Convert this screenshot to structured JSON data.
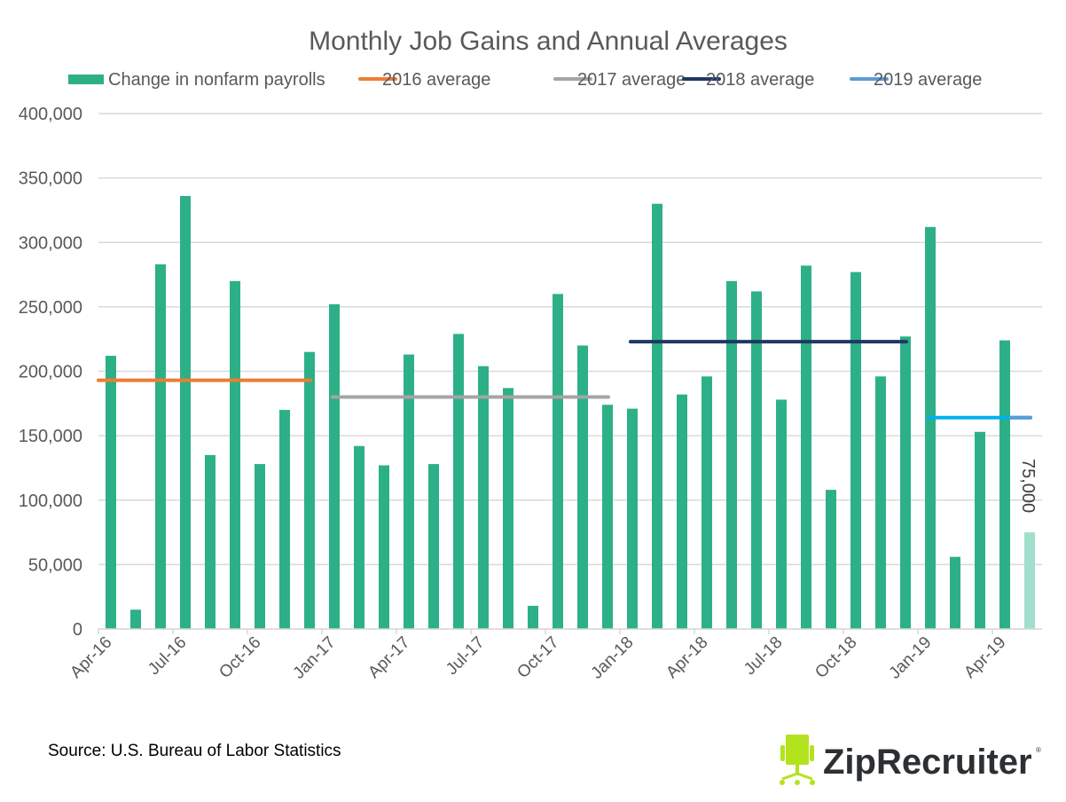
{
  "chart_data": {
    "type": "bar",
    "title": "Monthly Job Gains and Annual Averages",
    "xlabel": "",
    "ylabel": "",
    "ylim": [
      0,
      400000
    ],
    "yticks": [
      0,
      50000,
      100000,
      150000,
      200000,
      250000,
      300000,
      350000,
      400000
    ],
    "ytick_labels": [
      "0",
      "50,000",
      "100,000",
      "150,000",
      "200,000",
      "250,000",
      "300,000",
      "350,000",
      "400,000"
    ],
    "grid": true,
    "legend_position": "top",
    "categories": [
      "Apr-16",
      "May-16",
      "Jun-16",
      "Jul-16",
      "Aug-16",
      "Sep-16",
      "Oct-16",
      "Nov-16",
      "Dec-16",
      "Jan-17",
      "Feb-17",
      "Mar-17",
      "Apr-17",
      "May-17",
      "Jun-17",
      "Jul-17",
      "Aug-17",
      "Sep-17",
      "Oct-17",
      "Nov-17",
      "Dec-17",
      "Jan-18",
      "Feb-18",
      "Mar-18",
      "Apr-18",
      "May-18",
      "Jun-18",
      "Jul-18",
      "Aug-18",
      "Sep-18",
      "Oct-18",
      "Nov-18",
      "Dec-18",
      "Jan-19",
      "Feb-19",
      "Mar-19",
      "Apr-19",
      "May-19"
    ],
    "xtick_labels": [
      "Apr-16",
      "Jul-16",
      "Oct-16",
      "Jan-17",
      "Apr-17",
      "Jul-17",
      "Oct-17",
      "Jan-18",
      "Apr-18",
      "Jul-18",
      "Oct-18",
      "Jan-19",
      "Apr-19"
    ],
    "series": [
      {
        "name": "Change in nonfarm payrolls",
        "color": "#2db087",
        "highlight_color": "#a1dfcc",
        "values": [
          212000,
          15000,
          283000,
          336000,
          135000,
          270000,
          128000,
          170000,
          215000,
          252000,
          142000,
          127000,
          213000,
          128000,
          229000,
          204000,
          187000,
          18000,
          260000,
          220000,
          174000,
          171000,
          330000,
          182000,
          196000,
          270000,
          262000,
          178000,
          282000,
          108000,
          277000,
          196000,
          227000,
          312000,
          56000,
          153000,
          224000,
          75000
        ]
      }
    ],
    "averages": [
      {
        "name": "2016 average",
        "value": 193000,
        "from": "Apr-16",
        "to": "Dec-16",
        "color": "#ed7d31"
      },
      {
        "name": "2017 average",
        "value": 180000,
        "from": "Jan-17",
        "to": "Dec-17",
        "color": "#a5a5a5"
      },
      {
        "name": "2018 average",
        "value": 223000,
        "from": "Jan-18",
        "to": "Dec-18",
        "color": "#1f3864"
      },
      {
        "name": "2019 average",
        "value": 164000,
        "from": "Jan-19",
        "to": "May-19",
        "color": "#5b9bd5"
      }
    ],
    "annotations": [
      {
        "category": "May-19",
        "text": "75,000"
      }
    ]
  },
  "source": "Source: U.S. Bureau of Labor Statistics",
  "logo": {
    "text": "ZipRecruiter",
    "color": "#b3e31c"
  }
}
